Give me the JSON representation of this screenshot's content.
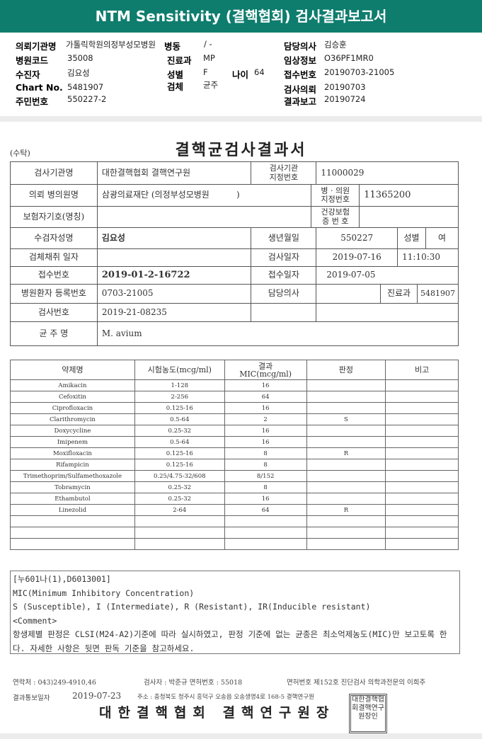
{
  "header": {
    "title": "NTM Sensitivity (결핵협회) 검사결과보고서"
  },
  "info": {
    "institution_label": "의뢰기관명",
    "institution": "가톨릭학원의정부성모병원",
    "ward_label": "병동",
    "ward": "/ -",
    "doctor_label": "담당의사",
    "doctor": "김승훈",
    "hospital_code_label": "병원코드",
    "hospital_code": "35008",
    "dept_label": "진료과",
    "dept": "MP",
    "clinical_label": "임상정보",
    "clinical": "O36PF1MR0",
    "patient_label": "수진자",
    "patient": "김요성",
    "sex_label": "성별",
    "sex": "F",
    "age_label": "나이",
    "age": "64",
    "receipt_label": "접수번호",
    "receipt": "20190703-21005",
    "chart_label": "Chart No.",
    "chart": "5481907",
    "specimen_label": "검체",
    "specimen": "균주",
    "request_label": "검사의뢰",
    "request": "20190703",
    "rrn_label": "주민번호",
    "rrn": "550227-2",
    "report_label": "결과보고",
    "report": "20190724"
  },
  "doc": {
    "title": "결핵균검사결과서",
    "copy": "(수탁)",
    "rows": {
      "lab_name_l": "검사기관명",
      "lab_name": "대한결핵협회 결핵연구원",
      "lab_no_l": "검사기관\n지정번호",
      "lab_no": "11000029",
      "hosp_l": "의뢰 병의원명",
      "hosp": "삼광의료재단 (의정부성모병원          )",
      "hosp_no_l": "병 · 의원\n지정번호",
      "hosp_no": "11365200",
      "ins_l": "보험자기호(명칭)",
      "ins": "",
      "card_l": "건강보험\n증 번 호",
      "card": "",
      "name_l": "수검자성명",
      "name": "김요성",
      "dob_l": "생년월일",
      "dob": "550227",
      "sex_l": "성별",
      "sex": "여",
      "collect_l": "검체채취 일자",
      "collect": "",
      "test_date_l": "검사일자",
      "test_date": "2019-07-16",
      "test_time": "11:10:30",
      "recv_no_l": "접수번호",
      "recv_no": "2019-01-2-16722",
      "recv_date_l": "접수일자",
      "recv_date": "2019-07-05",
      "reg_l": "병원환자 등록번호",
      "reg": "0703-21005",
      "doc_l": "담당의사",
      "doc": "",
      "dept_l": "진료과",
      "dept": "5481907",
      "test_no_l": "검사번호",
      "test_no": "2019-21-08235",
      "strain_l": "균 주 명",
      "strain": "M. avium"
    },
    "drug_headers": [
      "약제명",
      "시험농도(mcg/ml)",
      "결과\nMIC(mcg/ml)",
      "판정",
      "비고"
    ],
    "drugs": [
      [
        "Amikacin",
        "1-128",
        "16",
        "",
        ""
      ],
      [
        "Cefoxitin",
        "2-256",
        "64",
        "",
        ""
      ],
      [
        "Ciprofloxacin",
        "0.125-16",
        "16",
        "",
        ""
      ],
      [
        "Clarithromycin",
        "0.5-64",
        "2",
        "S",
        ""
      ],
      [
        "Doxycycline",
        "0.25-32",
        "16",
        "",
        ""
      ],
      [
        "Imipenem",
        "0.5-64",
        "16",
        "",
        ""
      ],
      [
        "Moxifloxacin",
        "0.125-16",
        "8",
        "R",
        ""
      ],
      [
        "Rifampicin",
        "0.125-16",
        "8",
        "",
        ""
      ],
      [
        "Trimethoprim/Sulfamethoxazole",
        "0.25/4.75-32/608",
        "8/152",
        "",
        ""
      ],
      [
        "Tobramycin",
        "0.25-32",
        "8",
        "",
        ""
      ],
      [
        "Ethambutol",
        "0.25-32",
        "16",
        "",
        ""
      ],
      [
        "Linezolid",
        "2-64",
        "64",
        "R",
        ""
      ],
      [
        "",
        "",
        "",
        "",
        ""
      ],
      [
        "",
        "",
        "",
        "",
        ""
      ],
      [
        "",
        "",
        "",
        "",
        ""
      ]
    ],
    "comment": [
      "[누601나(1),D6013001]",
      "MIC(Minimum Inhibitory Concentration)",
      "S (Susceptible), I (Intermediate), R (Resistant), IR(Inducible resistant)",
      "<Comment>",
      " 항생제별 판정은 CLSI(M24-A2)기준에 따라 실시하였고, 판정 기준에 없는 균종은 최소억제농도(MIC)만 보고토록 한다. 자세한 사항은 뒷면 판독 기준을 참고하세요."
    ],
    "footer": {
      "contact": "연락처 : 043)249-4910,46",
      "tester": "검사자 : 박준규  면허번호 : 55018",
      "license": "면허번호 제152호 진단검사 의학과전문의 이희주",
      "notify_label": "결과통보일자",
      "notify_date": "2019-07-23",
      "address": "주소 : 충청북도 청주시 흥덕구 오송읍 오송생명4로 168-5 결핵연구원",
      "signature": "대한결핵협회 결핵연구원장",
      "seal": "대한결핵협회결핵연구원장인"
    }
  }
}
